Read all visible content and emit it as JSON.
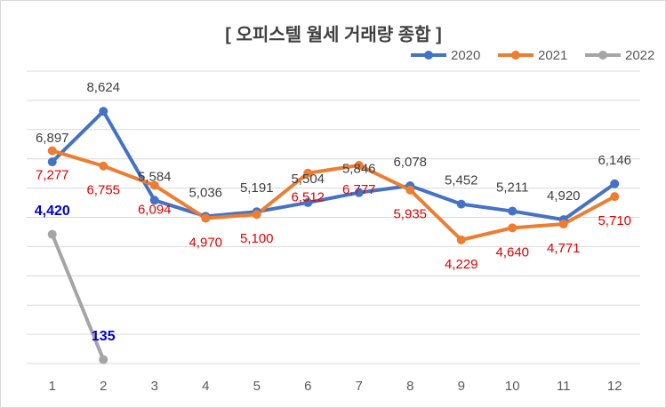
{
  "chart_data": {
    "type": "line",
    "title": "[ 오피스텔 월세 거래량 종합 ]",
    "categories": [
      "1",
      "2",
      "3",
      "4",
      "5",
      "6",
      "7",
      "8",
      "9",
      "10",
      "11",
      "12"
    ],
    "series": [
      {
        "name": "2020",
        "color": "#4472c4",
        "label_color": "#404040",
        "values": [
          6897,
          8624,
          5584,
          5036,
          5191,
          5504,
          5846,
          6078,
          5452,
          5211,
          4920,
          6146
        ],
        "value_labels": [
          "6,897",
          "8,624",
          "5,584",
          "5,036",
          "5,191",
          "5,504",
          "5,846",
          "6,078",
          "5,452",
          "5,211",
          "4,920",
          "6,146"
        ]
      },
      {
        "name": "2021",
        "color": "#ed7d31",
        "label_color": "#e00000",
        "values": [
          7277,
          6755,
          6094,
          4970,
          5100,
          6512,
          6777,
          5935,
          4229,
          4640,
          4771,
          5710
        ],
        "value_labels": [
          "7,277",
          "6,755",
          "6,094",
          "4,970",
          "5,100",
          "6,512",
          "6,777",
          "5,935",
          "4,229",
          "4,640",
          "4,771",
          "5,710"
        ]
      },
      {
        "name": "2022",
        "color": "#a5a5a5",
        "label_color": "#0000cc",
        "values": [
          4420,
          135,
          null,
          null,
          null,
          null,
          null,
          null,
          null,
          null,
          null,
          null
        ],
        "value_labels": [
          "4,420",
          "135",
          null,
          null,
          null,
          null,
          null,
          null,
          null,
          null,
          null,
          null
        ]
      }
    ],
    "ylim": [
      0,
      10000
    ],
    "yticks": [
      0,
      1000,
      2000,
      3000,
      4000,
      5000,
      6000,
      7000,
      8000,
      9000,
      10000
    ],
    "grid": true,
    "legend": "top-right"
  }
}
